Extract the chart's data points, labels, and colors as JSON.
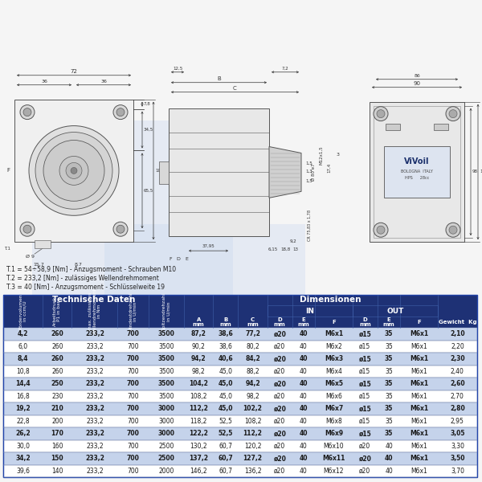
{
  "title_notes": [
    "T.1 = 54÷58,9 [Nm] - Anzugsmoment - Schrauben M10",
    "T.2 = 233,2 [Nm] - zulässiges Wellendrehmoment",
    "T.3 = 40 [Nm] - Anzugsmoment - Schlüsselweite 19"
  ],
  "header_technische": "Technische Daten",
  "header_dimensionen": "Dimensionen",
  "rot_headers": [
    "Fördervolumen\nin ccm/U",
    "Arbeitsdruck\nP1 in bar",
    "max. zulässiges\nWellendrehmoment\nin Nm",
    "Mindestdrehzahl\nin U/min",
    "Spitzendrehzahl\nin U/min"
  ],
  "rows": [
    [
      "4,2",
      "260",
      "233,2",
      "700",
      "3500",
      "87,2",
      "38,6",
      "77,2",
      "ø20",
      "40",
      "M6x1",
      "ø15",
      "35",
      "M6x1",
      "2,10"
    ],
    [
      "6,0",
      "260",
      "233,2",
      "700",
      "3500",
      "90,2",
      "38,6",
      "80,2",
      "ø20",
      "40",
      "M6x2",
      "ø15",
      "35",
      "M6x1",
      "2,20"
    ],
    [
      "8,4",
      "260",
      "233,2",
      "700",
      "3500",
      "94,2",
      "40,6",
      "84,2",
      "ø20",
      "40",
      "M6x3",
      "ø15",
      "35",
      "M6x1",
      "2,30"
    ],
    [
      "10,8",
      "260",
      "233,2",
      "700",
      "3500",
      "98,2",
      "45,0",
      "88,2",
      "ø20",
      "40",
      "M6x4",
      "ø15",
      "35",
      "M6x1",
      "2,40"
    ],
    [
      "14,4",
      "250",
      "233,2",
      "700",
      "3500",
      "104,2",
      "45,0",
      "94,2",
      "ø20",
      "40",
      "M6x5",
      "ø15",
      "35",
      "M6x1",
      "2,60"
    ],
    [
      "16,8",
      "230",
      "233,2",
      "700",
      "3500",
      "108,2",
      "45,0",
      "98,2",
      "ø20",
      "40",
      "M6x6",
      "ø15",
      "35",
      "M6x1",
      "2,70"
    ],
    [
      "19,2",
      "210",
      "233,2",
      "700",
      "3000",
      "112,2",
      "45,0",
      "102,2",
      "ø20",
      "40",
      "M6x7",
      "ø15",
      "35",
      "M6x1",
      "2,80"
    ],
    [
      "22,8",
      "200",
      "233,2",
      "700",
      "3000",
      "118,2",
      "52,5",
      "108,2",
      "ø20",
      "40",
      "M6x8",
      "ø15",
      "35",
      "M6x1",
      "2,95"
    ],
    [
      "26,2",
      "170",
      "233,2",
      "700",
      "3000",
      "122,2",
      "52,5",
      "112,2",
      "ø20",
      "40",
      "M6x9",
      "ø15",
      "35",
      "M6x1",
      "3,05"
    ],
    [
      "30,0",
      "160",
      "233,2",
      "700",
      "2500",
      "130,2",
      "60,7",
      "120,2",
      "ø20",
      "40",
      "M6x10",
      "ø20",
      "40",
      "M6x1",
      "3,30"
    ],
    [
      "34,2",
      "150",
      "233,2",
      "700",
      "2500",
      "137,2",
      "60,7",
      "127,2",
      "ø20",
      "40",
      "M6x11",
      "ø20",
      "40",
      "M6x1",
      "3,50"
    ],
    [
      "39,6",
      "140",
      "233,2",
      "700",
      "2000",
      "146,2",
      "60,7",
      "136,2",
      "ø20",
      "40",
      "M6x12",
      "ø20",
      "40",
      "M6x1",
      "3,70"
    ]
  ],
  "dark_blue": "#1e3175",
  "row_blue": "#c5d3eb",
  "row_white": "#ffffff",
  "hdr_text": "#ffffff",
  "data_text": "#1a1a1a",
  "bg_color": "#f5f5f5",
  "diagram_bg": "#ffffff",
  "line_color": "#555555"
}
